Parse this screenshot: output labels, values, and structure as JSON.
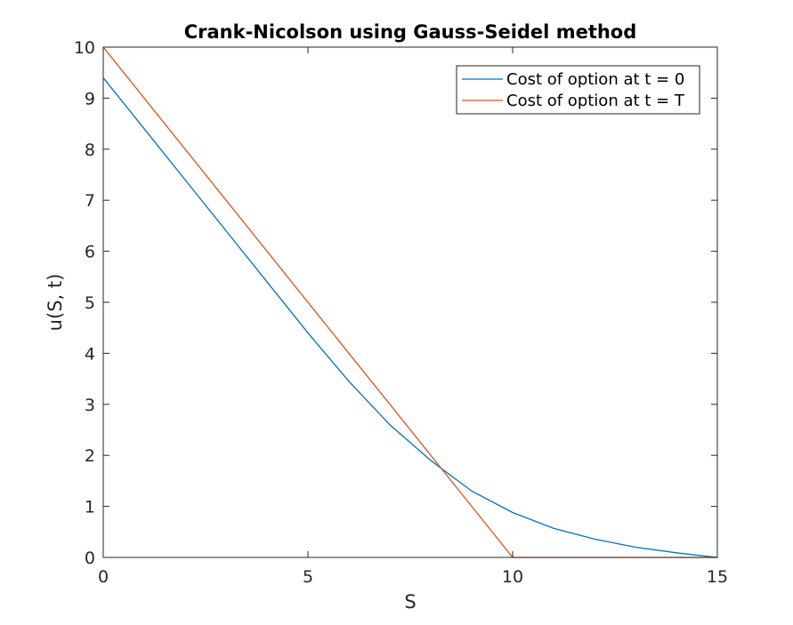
{
  "chart_data": {
    "type": "line",
    "title": "Crank-Nicolson using Gauss-Seidel method",
    "xlabel": "S",
    "ylabel": "u(S, t)",
    "xlim": [
      0,
      15
    ],
    "ylim": [
      0,
      10
    ],
    "xticks": [
      0,
      5,
      10,
      15
    ],
    "yticks": [
      0,
      1,
      2,
      3,
      4,
      5,
      6,
      7,
      8,
      9,
      10
    ],
    "grid": false,
    "box": true,
    "legend_position": "top-right",
    "series": [
      {
        "name": "Cost of option at t = 0",
        "color": "#0072BD",
        "x": [
          0,
          1,
          2,
          3,
          4,
          5,
          6,
          7,
          8,
          9,
          10,
          11,
          12,
          13,
          14,
          15
        ],
        "y": [
          9.4,
          8.4,
          7.4,
          6.4,
          5.4,
          4.4,
          3.45,
          2.6,
          1.9,
          1.3,
          0.88,
          0.57,
          0.36,
          0.2,
          0.09,
          0
        ]
      },
      {
        "name": "Cost of option at t = T",
        "color": "#D95319",
        "x": [
          0,
          10,
          15
        ],
        "y": [
          10,
          0,
          0
        ]
      }
    ]
  }
}
